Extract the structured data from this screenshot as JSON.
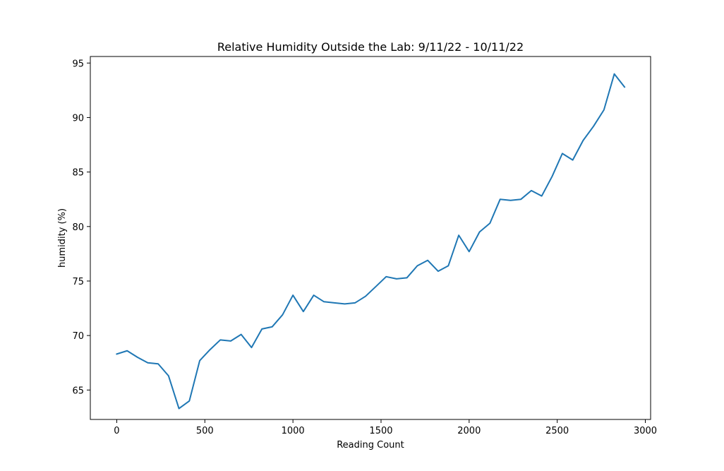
{
  "chart_data": {
    "type": "line",
    "title": "Relative Humidity Outside the Lab: 9/11/22 - 10/11/22",
    "xlabel": "Reading Count",
    "ylabel": "humidity (%)",
    "xlim": [
      -150,
      3030
    ],
    "ylim": [
      62.3,
      95.6
    ],
    "xticks": [
      0,
      500,
      1000,
      1500,
      2000,
      2500,
      3000
    ],
    "yticks": [
      65,
      70,
      75,
      80,
      85,
      90,
      95
    ],
    "grid": false,
    "legend": "none",
    "colors": {
      "line": "#1f77b4",
      "axes": "#000000",
      "background": "#ffffff"
    },
    "series": [
      {
        "x": [
          0,
          59,
          118,
          176,
          235,
          294,
          353,
          412,
          471,
          529,
          588,
          647,
          706,
          765,
          824,
          882,
          941,
          1000,
          1059,
          1118,
          1176,
          1235,
          1294,
          1353,
          1412,
          1471,
          1529,
          1588,
          1647,
          1706,
          1765,
          1824,
          1882,
          1941,
          2000,
          2059,
          2118,
          2176,
          2235,
          2294,
          2353,
          2412,
          2471,
          2529,
          2588,
          2647,
          2706,
          2765,
          2824,
          2882
        ],
        "y": [
          68.3,
          68.6,
          68.0,
          67.5,
          67.4,
          66.3,
          63.3,
          64.0,
          67.7,
          68.7,
          69.6,
          69.5,
          70.1,
          68.9,
          70.6,
          70.8,
          71.9,
          73.7,
          72.2,
          73.7,
          73.1,
          73.0,
          72.9,
          73.0,
          73.6,
          74.5,
          75.4,
          75.2,
          75.3,
          76.4,
          76.9,
          75.9,
          76.4,
          79.2,
          77.7,
          79.5,
          80.3,
          82.5,
          82.4,
          82.5,
          83.3,
          82.8,
          84.6,
          86.7,
          86.1,
          87.9,
          89.2,
          90.7,
          94.0,
          92.8
        ]
      }
    ]
  }
}
